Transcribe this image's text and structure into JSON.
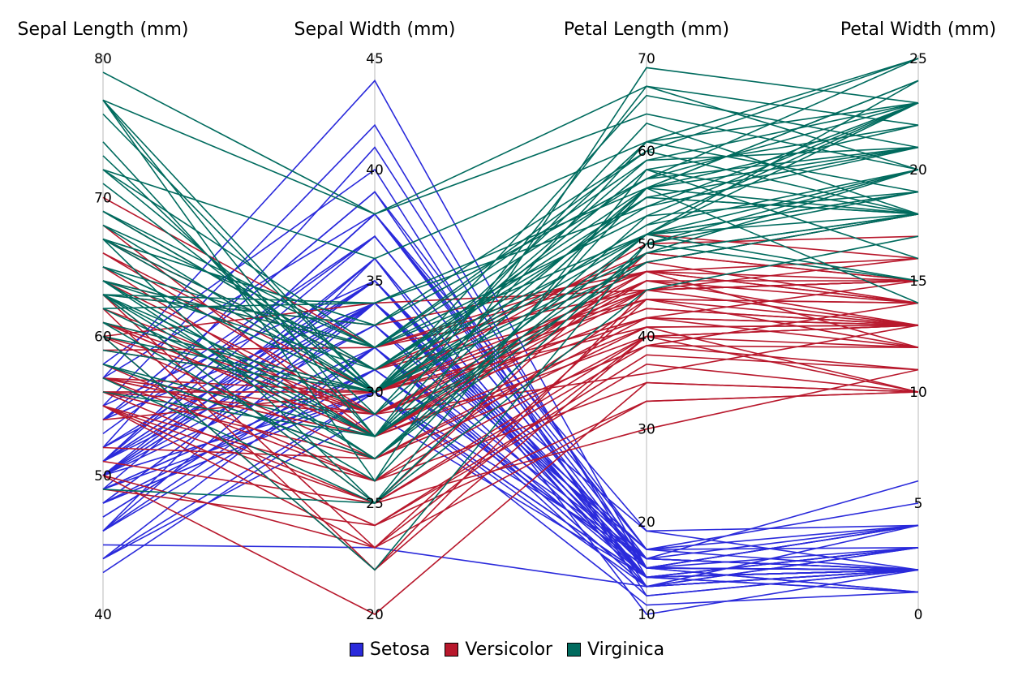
{
  "chart_data": {
    "type": "parallel-coordinates",
    "axes": [
      {
        "label": "Sepal Length (mm)",
        "range": [
          40,
          80
        ],
        "ticks": [
          40,
          50,
          60,
          70,
          80
        ]
      },
      {
        "label": "Sepal Width (mm)",
        "range": [
          20,
          45
        ],
        "ticks": [
          20,
          25,
          30,
          35,
          40,
          45
        ]
      },
      {
        "label": "Petal Length (mm)",
        "range": [
          10,
          70
        ],
        "ticks": [
          10,
          20,
          30,
          40,
          50,
          60,
          70
        ]
      },
      {
        "label": "Petal Width (mm)",
        "range": [
          0,
          25
        ],
        "ticks": [
          0,
          5,
          10,
          15,
          20,
          25
        ]
      }
    ],
    "legend": {
      "placement": "bottom"
    },
    "grid": false,
    "series": [
      {
        "name": "Setosa",
        "color": "#2a2adb",
        "lines": [
          [
            51,
            35,
            14,
            2
          ],
          [
            49,
            30,
            14,
            2
          ],
          [
            47,
            32,
            13,
            2
          ],
          [
            46,
            31,
            15,
            2
          ],
          [
            50,
            36,
            14,
            2
          ],
          [
            54,
            39,
            17,
            4
          ],
          [
            46,
            34,
            14,
            3
          ],
          [
            50,
            34,
            15,
            2
          ],
          [
            44,
            29,
            14,
            2
          ],
          [
            49,
            31,
            15,
            1
          ],
          [
            54,
            37,
            15,
            2
          ],
          [
            48,
            34,
            16,
            2
          ],
          [
            48,
            30,
            14,
            1
          ],
          [
            43,
            30,
            11,
            1
          ],
          [
            58,
            40,
            12,
            2
          ],
          [
            57,
            44,
            15,
            4
          ],
          [
            54,
            39,
            13,
            4
          ],
          [
            51,
            35,
            14,
            3
          ],
          [
            57,
            38,
            17,
            3
          ],
          [
            51,
            38,
            15,
            3
          ],
          [
            54,
            34,
            17,
            2
          ],
          [
            51,
            37,
            15,
            4
          ],
          [
            46,
            36,
            10,
            2
          ],
          [
            51,
            33,
            17,
            5
          ],
          [
            48,
            34,
            19,
            2
          ],
          [
            50,
            30,
            16,
            2
          ],
          [
            50,
            34,
            16,
            4
          ],
          [
            52,
            35,
            15,
            2
          ],
          [
            52,
            34,
            14,
            2
          ],
          [
            47,
            32,
            16,
            2
          ],
          [
            48,
            31,
            16,
            2
          ],
          [
            54,
            34,
            15,
            4
          ],
          [
            52,
            41,
            15,
            1
          ],
          [
            55,
            42,
            14,
            2
          ],
          [
            49,
            31,
            15,
            2
          ],
          [
            50,
            32,
            12,
            2
          ],
          [
            55,
            35,
            13,
            2
          ],
          [
            49,
            36,
            14,
            1
          ],
          [
            44,
            30,
            13,
            2
          ],
          [
            51,
            34,
            15,
            2
          ],
          [
            50,
            35,
            13,
            3
          ],
          [
            45,
            23,
            13,
            3
          ],
          [
            44,
            32,
            13,
            2
          ],
          [
            50,
            35,
            16,
            6
          ],
          [
            51,
            38,
            19,
            4
          ],
          [
            48,
            30,
            14,
            3
          ],
          [
            51,
            38,
            16,
            2
          ],
          [
            46,
            32,
            14,
            2
          ],
          [
            53,
            37,
            15,
            2
          ],
          [
            50,
            33,
            14,
            2
          ]
        ]
      },
      {
        "name": "Versicolor",
        "color": "#b8182c",
        "lines": [
          [
            70,
            32,
            47,
            14
          ],
          [
            64,
            32,
            45,
            15
          ],
          [
            69,
            31,
            49,
            15
          ],
          [
            55,
            23,
            40,
            13
          ],
          [
            65,
            28,
            46,
            15
          ],
          [
            57,
            28,
            45,
            13
          ],
          [
            63,
            33,
            47,
            16
          ],
          [
            49,
            24,
            33,
            10
          ],
          [
            66,
            29,
            46,
            13
          ],
          [
            52,
            27,
            39,
            14
          ],
          [
            50,
            20,
            35,
            10
          ],
          [
            59,
            30,
            42,
            15
          ],
          [
            60,
            22,
            40,
            10
          ],
          [
            61,
            29,
            47,
            14
          ],
          [
            56,
            29,
            36,
            13
          ],
          [
            67,
            31,
            44,
            14
          ],
          [
            56,
            30,
            45,
            15
          ],
          [
            58,
            27,
            41,
            10
          ],
          [
            62,
            22,
            45,
            15
          ],
          [
            56,
            25,
            39,
            11
          ],
          [
            59,
            32,
            48,
            18
          ],
          [
            61,
            28,
            40,
            13
          ],
          [
            63,
            25,
            49,
            15
          ],
          [
            61,
            28,
            47,
            12
          ],
          [
            64,
            29,
            43,
            13
          ],
          [
            66,
            30,
            44,
            14
          ],
          [
            68,
            28,
            48,
            14
          ],
          [
            67,
            30,
            50,
            17
          ],
          [
            60,
            29,
            45,
            15
          ],
          [
            57,
            26,
            35,
            10
          ],
          [
            55,
            24,
            38,
            11
          ],
          [
            55,
            24,
            37,
            10
          ],
          [
            58,
            27,
            39,
            12
          ],
          [
            60,
            27,
            51,
            16
          ],
          [
            54,
            30,
            45,
            15
          ],
          [
            60,
            34,
            45,
            16
          ],
          [
            67,
            31,
            47,
            15
          ],
          [
            63,
            23,
            44,
            13
          ],
          [
            56,
            30,
            41,
            13
          ],
          [
            55,
            25,
            40,
            13
          ],
          [
            55,
            26,
            44,
            12
          ],
          [
            61,
            30,
            46,
            14
          ],
          [
            58,
            26,
            40,
            12
          ],
          [
            50,
            23,
            33,
            10
          ],
          [
            56,
            27,
            42,
            13
          ],
          [
            57,
            30,
            42,
            12
          ],
          [
            57,
            29,
            42,
            13
          ],
          [
            62,
            29,
            43,
            13
          ],
          [
            51,
            25,
            30,
            11
          ],
          [
            57,
            28,
            41,
            13
          ]
        ]
      },
      {
        "name": "Virginica",
        "color": "#006b5e",
        "lines": [
          [
            63,
            33,
            60,
            25
          ],
          [
            58,
            27,
            51,
            19
          ],
          [
            71,
            30,
            59,
            21
          ],
          [
            63,
            29,
            56,
            18
          ],
          [
            65,
            30,
            58,
            22
          ],
          [
            76,
            30,
            66,
            21
          ],
          [
            49,
            25,
            45,
            17
          ],
          [
            73,
            29,
            63,
            18
          ],
          [
            67,
            25,
            58,
            18
          ],
          [
            72,
            36,
            61,
            25
          ],
          [
            65,
            32,
            51,
            20
          ],
          [
            64,
            27,
            53,
            19
          ],
          [
            68,
            30,
            55,
            21
          ],
          [
            57,
            25,
            50,
            20
          ],
          [
            58,
            28,
            51,
            24
          ],
          [
            64,
            32,
            53,
            23
          ],
          [
            65,
            30,
            55,
            18
          ],
          [
            77,
            38,
            67,
            22
          ],
          [
            77,
            26,
            69,
            23
          ],
          [
            60,
            22,
            50,
            15
          ],
          [
            69,
            32,
            57,
            23
          ],
          [
            56,
            28,
            49,
            20
          ],
          [
            77,
            28,
            67,
            20
          ],
          [
            63,
            27,
            49,
            18
          ],
          [
            67,
            33,
            57,
            21
          ],
          [
            72,
            32,
            60,
            18
          ],
          [
            62,
            28,
            48,
            18
          ],
          [
            61,
            30,
            49,
            18
          ],
          [
            64,
            28,
            56,
            21
          ],
          [
            72,
            30,
            58,
            16
          ],
          [
            74,
            28,
            61,
            19
          ],
          [
            79,
            38,
            64,
            20
          ],
          [
            64,
            28,
            56,
            22
          ],
          [
            63,
            28,
            51,
            15
          ],
          [
            61,
            26,
            56,
            14
          ],
          [
            77,
            30,
            61,
            23
          ],
          [
            63,
            34,
            56,
            24
          ],
          [
            64,
            31,
            55,
            18
          ],
          [
            60,
            30,
            48,
            18
          ],
          [
            69,
            31,
            54,
            21
          ],
          [
            67,
            31,
            56,
            24
          ],
          [
            69,
            31,
            51,
            23
          ],
          [
            58,
            27,
            51,
            19
          ],
          [
            68,
            32,
            59,
            23
          ],
          [
            67,
            33,
            57,
            25
          ],
          [
            67,
            30,
            52,
            23
          ],
          [
            63,
            25,
            50,
            19
          ],
          [
            65,
            30,
            52,
            20
          ],
          [
            62,
            34,
            54,
            23
          ],
          [
            59,
            30,
            51,
            18
          ]
        ]
      }
    ]
  }
}
